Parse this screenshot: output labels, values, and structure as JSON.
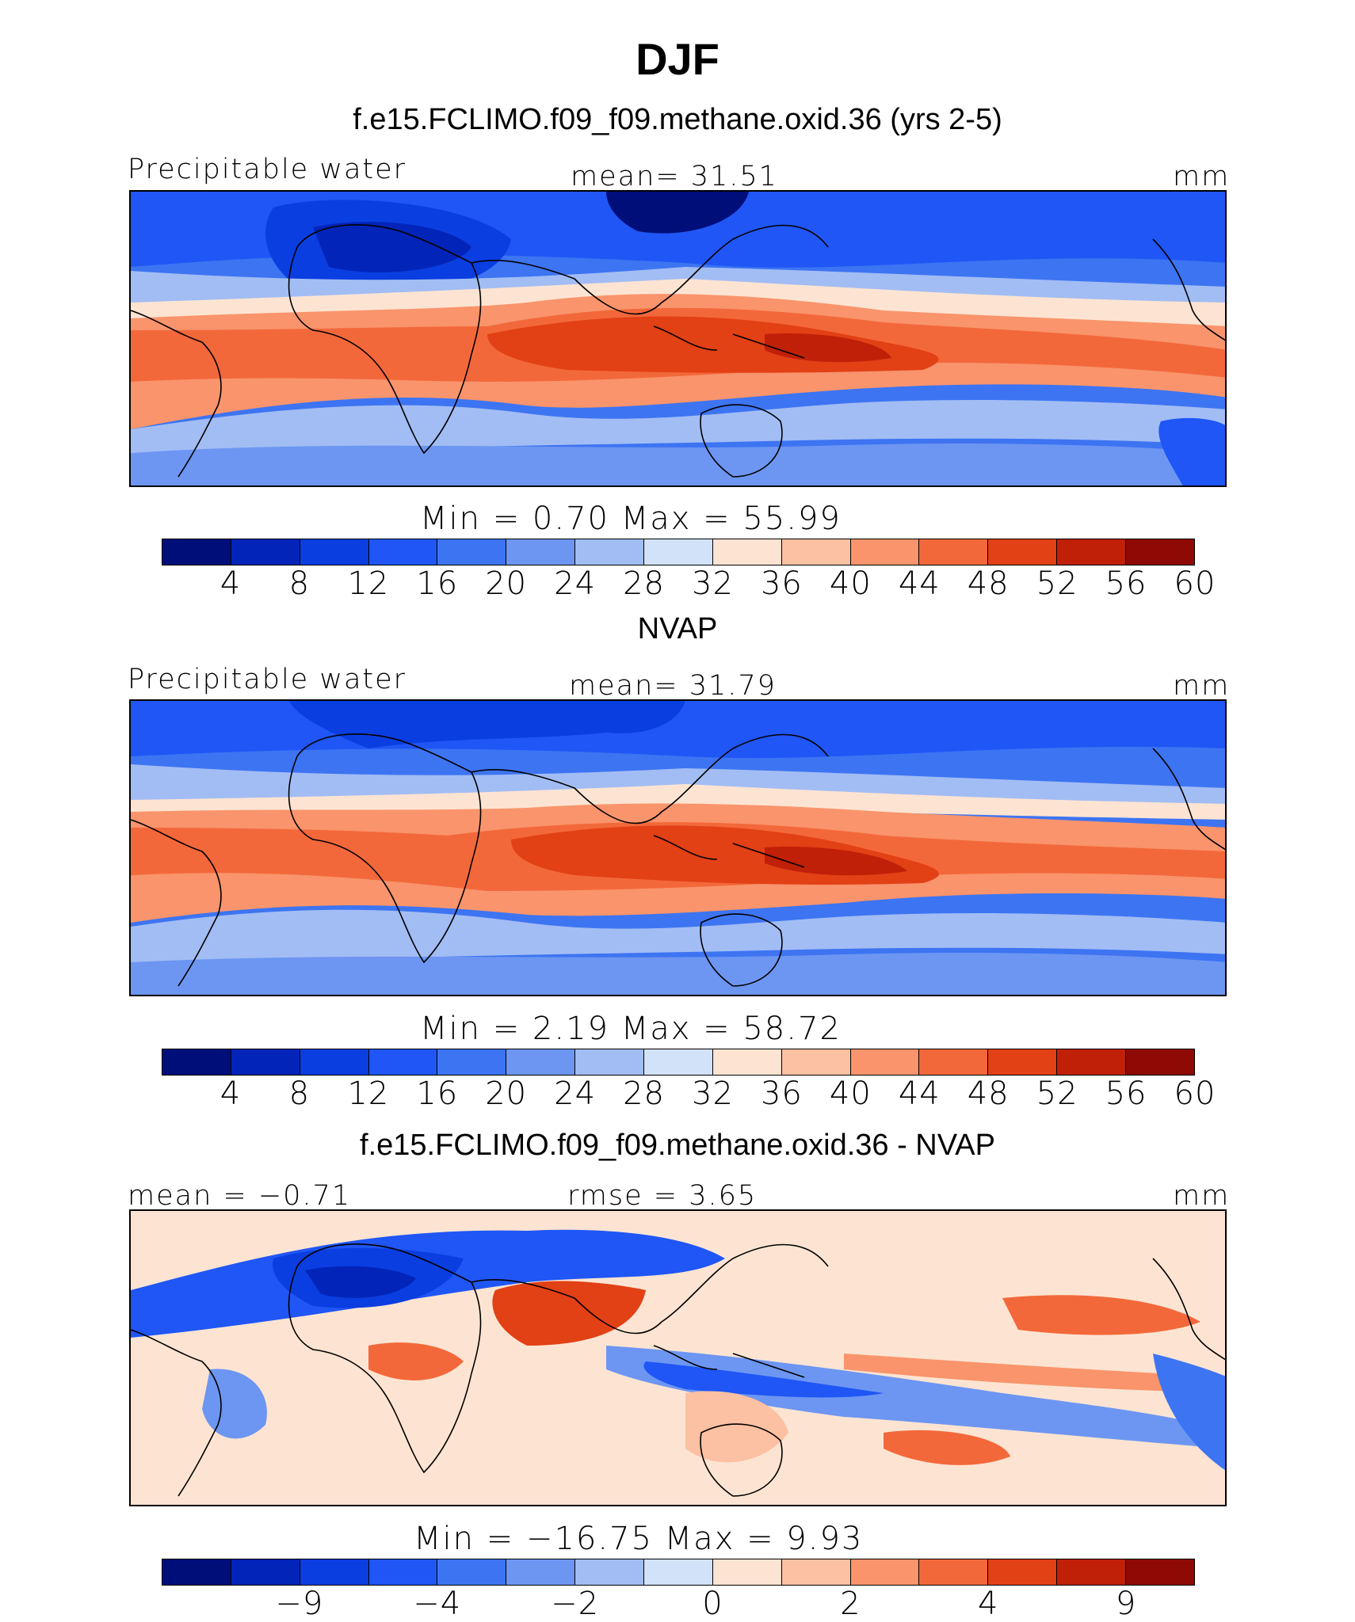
{
  "main_title": "DJF",
  "chart_data": [
    {
      "type": "heatmap",
      "title": "f.e15.FCLIMO.f09_f09.methane.oxid.36 (yrs 2-5)",
      "left_label": "Precipitable water",
      "center_label": "mean=   31.51",
      "right_label": "mm",
      "stats": "Min  =    0.70  Max  =   55.99",
      "colorbar_ticks": [
        "4",
        "8",
        "12",
        "16",
        "20",
        "24",
        "28",
        "32",
        "36",
        "40",
        "44",
        "48",
        "52",
        "56",
        "60"
      ],
      "min": 0.7,
      "max": 55.99,
      "mean": 31.51
    },
    {
      "type": "heatmap",
      "title": "NVAP",
      "left_label": "Precipitable water",
      "center_label": "mean=   31.79",
      "right_label": "mm",
      "stats": "Min  =    2.19  Max  =   58.72",
      "colorbar_ticks": [
        "4",
        "8",
        "12",
        "16",
        "20",
        "24",
        "28",
        "32",
        "36",
        "40",
        "44",
        "48",
        "52",
        "56",
        "60"
      ],
      "min": 2.19,
      "max": 58.72,
      "mean": 31.79
    },
    {
      "type": "heatmap",
      "title": "f.e15.FCLIMO.f09_f09.methane.oxid.36 - NVAP",
      "left_label": "mean =  −0.71",
      "center_label": "rmse =    3.65",
      "right_label": "mm",
      "stats": "Min  = −16.75  Max  =    9.93",
      "colorbar_ticks": [
        "−9",
        "−4",
        "−2",
        "0",
        "2",
        "4",
        "9"
      ],
      "min": -16.75,
      "max": 9.93,
      "mean": -0.71,
      "rmse": 3.65
    }
  ],
  "colors": [
    "#000e7a",
    "#0224b8",
    "#0a3ee0",
    "#1f56f5",
    "#3d74f2",
    "#6d96f2",
    "#a2bdf4",
    "#d2e2f8",
    "#fde4d2",
    "#fcc0a2",
    "#f9946c",
    "#f3683a",
    "#e24015",
    "#c02008",
    "#8f0a05"
  ]
}
